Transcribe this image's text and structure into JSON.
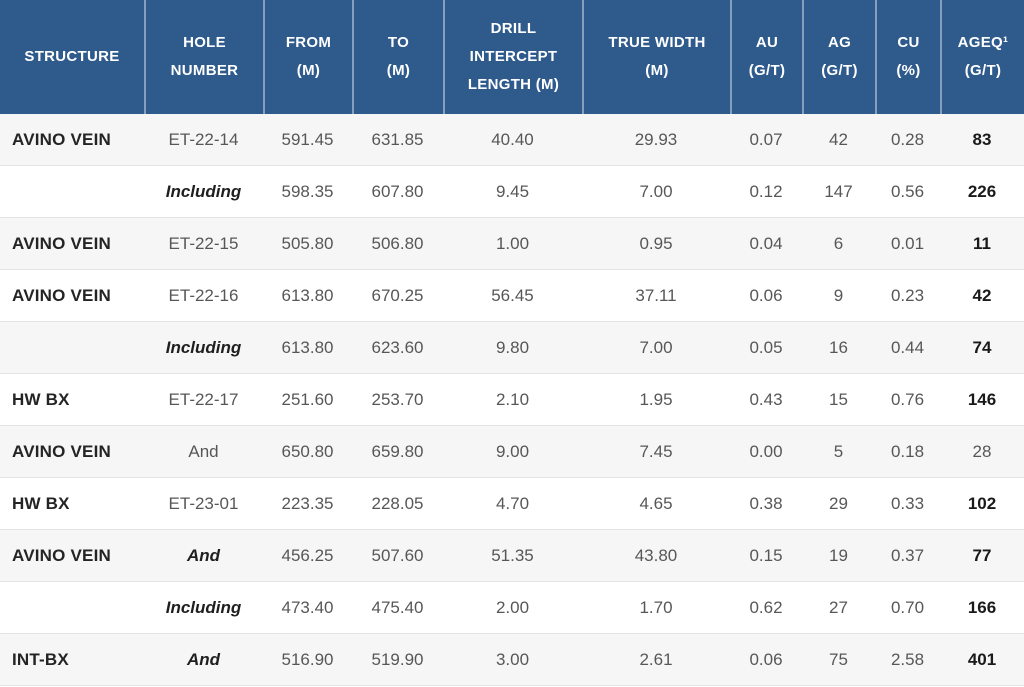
{
  "colors": {
    "header_background": "#2e5a8c",
    "header_text": "#ffffff",
    "stripe_row": "#f6f6f6",
    "row_border": "#e4e4e4",
    "value_text": "#575757",
    "dark_text": "#242424"
  },
  "table": {
    "columns": [
      {
        "key": "structure",
        "label": "STRUCTURE",
        "label_lines": [
          "STRUCTURE"
        ]
      },
      {
        "key": "hole-number",
        "label": "HOLE NUMBER",
        "label_lines": [
          "HOLE",
          "NUMBER"
        ]
      },
      {
        "key": "from-m",
        "label": "FROM (M)",
        "label_lines": [
          "FROM",
          "(M)"
        ]
      },
      {
        "key": "to-m",
        "label": "TO (M)",
        "label_lines": [
          "TO",
          "(M)"
        ]
      },
      {
        "key": "drill-intercept-length-m",
        "label": "DRILL INTERCEPT LENGTH (M)",
        "label_lines": [
          "DRILL",
          "INTERCEPT",
          "LENGTH (M)"
        ]
      },
      {
        "key": "true-width-m",
        "label": "TRUE WIDTH (M)",
        "label_lines": [
          "TRUE WIDTH",
          "(M)"
        ]
      },
      {
        "key": "au-gt",
        "label": "AU (G/T)",
        "label_lines": [
          "AU",
          "(G/T)"
        ]
      },
      {
        "key": "ag-gt",
        "label": "AG (G/T)",
        "label_lines": [
          "AG",
          "(G/T)"
        ]
      },
      {
        "key": "cu-pct",
        "label": "CU (%)",
        "label_lines": [
          "CU",
          "(%)"
        ]
      },
      {
        "key": "ageq-gt",
        "label": "AGEQ¹ (G/T)",
        "label_lines": [
          "AGEQ¹",
          "(G/T)"
        ]
      }
    ],
    "rows": [
      {
        "structure": "AVINO VEIN",
        "hole": "ET-22-14",
        "hole_italic": false,
        "from": "591.45",
        "to": "631.85",
        "drill": "40.40",
        "true_width": "29.93",
        "au": "0.07",
        "ag": "42",
        "cu": "0.28",
        "ageq": "83",
        "ageq_bold": true
      },
      {
        "structure": "",
        "hole": "Including",
        "hole_italic": true,
        "from": "598.35",
        "to": "607.80",
        "drill": "9.45",
        "true_width": "7.00",
        "au": "0.12",
        "ag": "147",
        "cu": "0.56",
        "ageq": "226",
        "ageq_bold": true
      },
      {
        "structure": "AVINO VEIN",
        "hole": "ET-22-15",
        "hole_italic": false,
        "from": "505.80",
        "to": "506.80",
        "drill": "1.00",
        "true_width": "0.95",
        "au": "0.04",
        "ag": "6",
        "cu": "0.01",
        "ageq": "11",
        "ageq_bold": true
      },
      {
        "structure": "AVINO VEIN",
        "hole": "ET-22-16",
        "hole_italic": false,
        "from": "613.80",
        "to": "670.25",
        "drill": "56.45",
        "true_width": "37.11",
        "au": "0.06",
        "ag": "9",
        "cu": "0.23",
        "ageq": "42",
        "ageq_bold": true
      },
      {
        "structure": "",
        "hole": "Including",
        "hole_italic": true,
        "from": "613.80",
        "to": "623.60",
        "drill": "9.80",
        "true_width": "7.00",
        "au": "0.05",
        "ag": "16",
        "cu": "0.44",
        "ageq": "74",
        "ageq_bold": true
      },
      {
        "structure": "HW BX",
        "hole": "ET-22-17",
        "hole_italic": false,
        "from": "251.60",
        "to": "253.70",
        "drill": "2.10",
        "true_width": "1.95",
        "au": "0.43",
        "ag": "15",
        "cu": "0.76",
        "ageq": "146",
        "ageq_bold": true
      },
      {
        "structure": "AVINO VEIN",
        "hole": "And",
        "hole_italic": false,
        "from": "650.80",
        "to": "659.80",
        "drill": "9.00",
        "true_width": "7.45",
        "au": "0.00",
        "ag": "5",
        "cu": "0.18",
        "ageq": "28",
        "ageq_bold": false
      },
      {
        "structure": "HW BX",
        "hole": "ET-23-01",
        "hole_italic": false,
        "from": "223.35",
        "to": "228.05",
        "drill": "4.70",
        "true_width": "4.65",
        "au": "0.38",
        "ag": "29",
        "cu": "0.33",
        "ageq": "102",
        "ageq_bold": true
      },
      {
        "structure": "AVINO VEIN",
        "hole": "And",
        "hole_italic": true,
        "from": "456.25",
        "to": "507.60",
        "drill": "51.35",
        "true_width": "43.80",
        "au": "0.15",
        "ag": "19",
        "cu": "0.37",
        "ageq": "77",
        "ageq_bold": true
      },
      {
        "structure": "",
        "hole": "Including",
        "hole_italic": true,
        "from": "473.40",
        "to": "475.40",
        "drill": "2.00",
        "true_width": "1.70",
        "au": "0.62",
        "ag": "27",
        "cu": "0.70",
        "ageq": "166",
        "ageq_bold": true
      },
      {
        "structure": "INT-BX",
        "hole": "And",
        "hole_italic": true,
        "from": "516.90",
        "to": "519.90",
        "drill": "3.00",
        "true_width": "2.61",
        "au": "0.06",
        "ag": "75",
        "cu": "2.58",
        "ageq": "401",
        "ageq_bold": true
      }
    ]
  }
}
